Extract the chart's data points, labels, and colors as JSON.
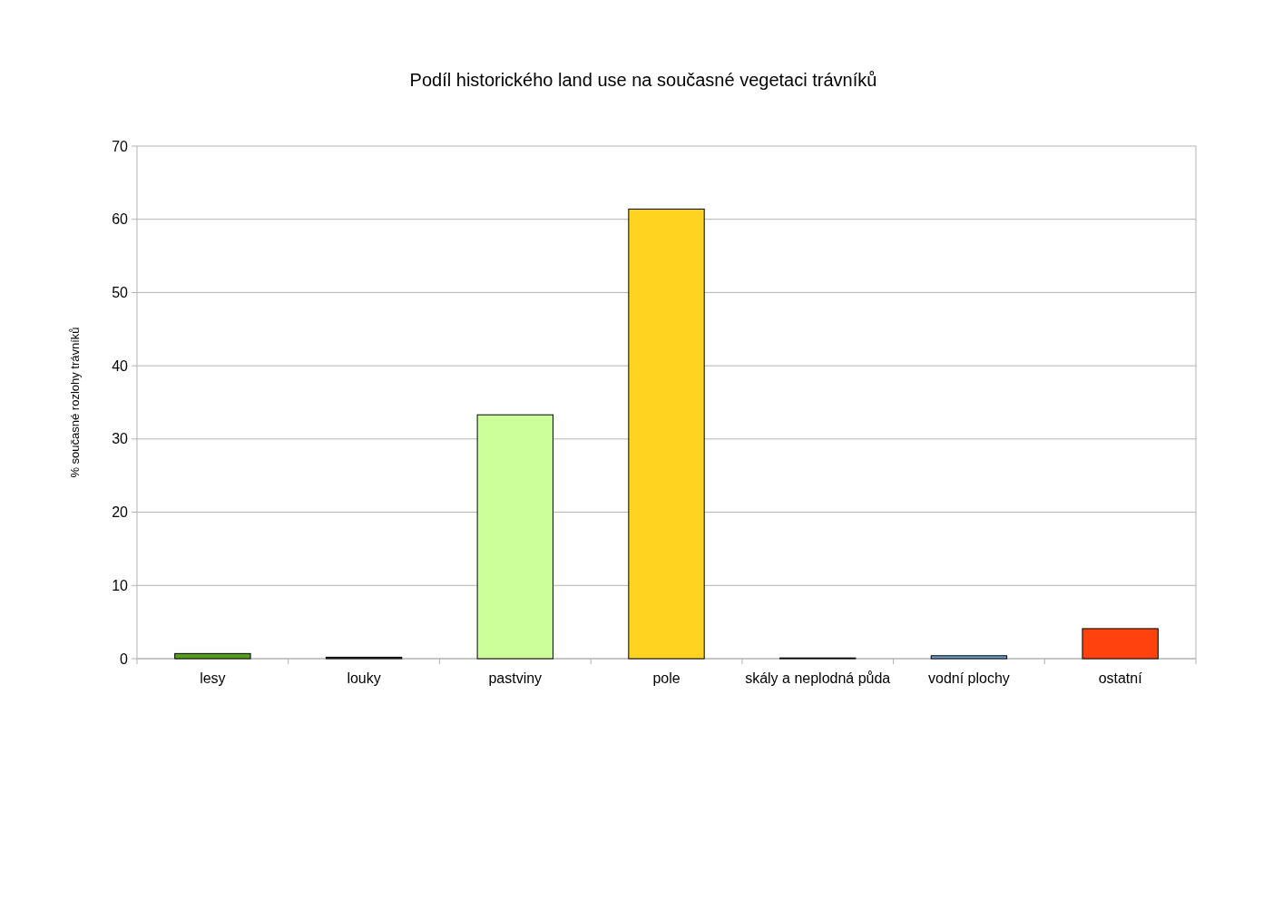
{
  "chart_data": {
    "type": "bar",
    "title": "Podíl historického land use na současné vegetaci trávníků",
    "ylabel": "% současné rozlohy trávníků",
    "categories": [
      "lesy",
      "louky",
      "pastviny",
      "pole",
      "skály a neplodná půda",
      "vodní plochy",
      "ostatní"
    ],
    "values": [
      0.7,
      0.2,
      33.3,
      61.4,
      0.1,
      0.4,
      4.1
    ],
    "colors": [
      "#579d1c",
      "#333333",
      "#ccff99",
      "#ffd320",
      "#333333",
      "#729fcf",
      "#ff420e"
    ],
    "ylim": [
      0,
      70
    ],
    "yticks": [
      0,
      10,
      20,
      30,
      40,
      50,
      60,
      70
    ],
    "grid": "y"
  }
}
